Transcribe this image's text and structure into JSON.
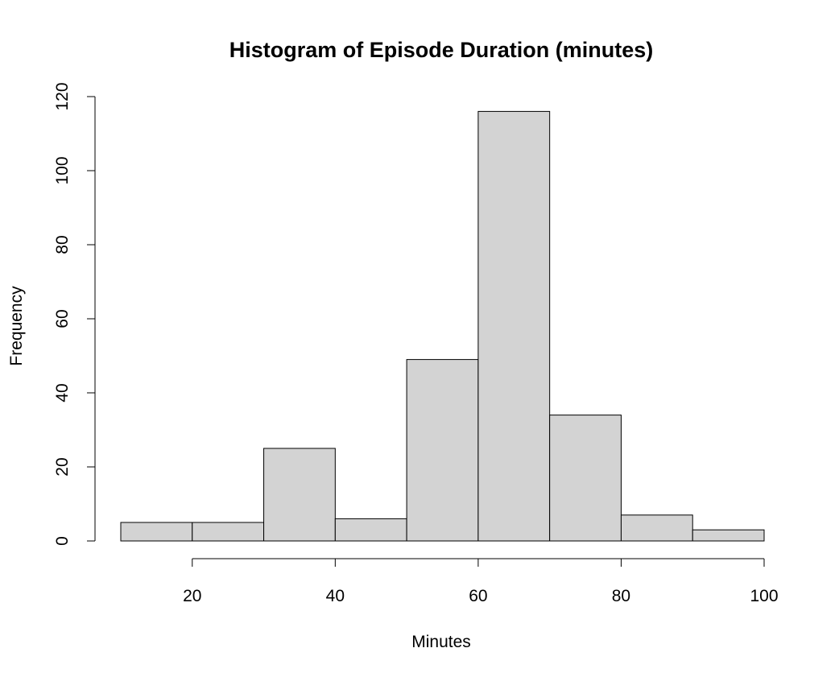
{
  "chart_data": {
    "type": "bar",
    "title": "Histogram of Episode Duration (minutes)",
    "xlabel": "Minutes",
    "ylabel": "Frequency",
    "bins": [
      {
        "from": 10,
        "to": 20,
        "count": 5
      },
      {
        "from": 20,
        "to": 30,
        "count": 5
      },
      {
        "from": 30,
        "to": 40,
        "count": 25
      },
      {
        "from": 40,
        "to": 50,
        "count": 6
      },
      {
        "from": 50,
        "to": 60,
        "count": 49
      },
      {
        "from": 60,
        "to": 70,
        "count": 116
      },
      {
        "from": 70,
        "to": 80,
        "count": 34
      },
      {
        "from": 80,
        "to": 90,
        "count": 7
      },
      {
        "from": 90,
        "to": 100,
        "count": 3
      }
    ],
    "x_ticks": [
      20,
      40,
      60,
      80,
      100
    ],
    "y_ticks": [
      0,
      20,
      40,
      60,
      80,
      100,
      120
    ],
    "xlim": [
      10,
      100
    ],
    "ylim": [
      0,
      120
    ],
    "grid": false,
    "bar_color": "#d3d3d3",
    "edge_color": "#000000"
  }
}
